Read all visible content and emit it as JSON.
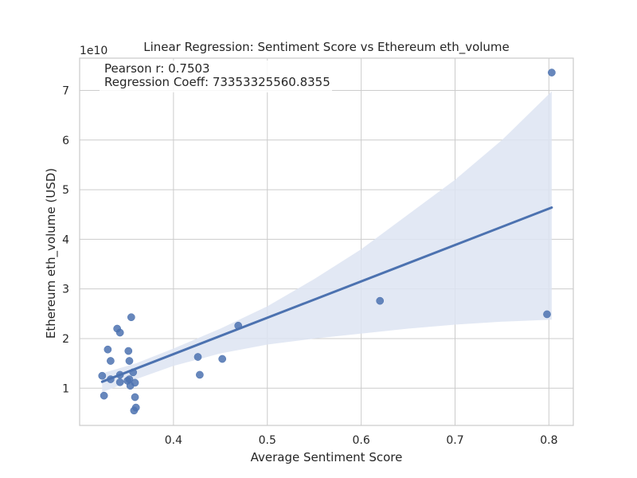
{
  "chart_data": {
    "type": "scatter",
    "title": "Linear Regression: Sentiment Score vs Ethereum eth_volume",
    "xlabel": "Average Sentiment Score",
    "ylabel": "Ethereum eth_volume (USD)",
    "y_scale_label": "1e10",
    "xlim": [
      0.3,
      0.826
    ],
    "ylim": [
      0.25,
      7.65
    ],
    "x_ticks": [
      0.4,
      0.5,
      0.6,
      0.7,
      0.8
    ],
    "y_ticks": [
      1,
      2,
      3,
      4,
      5,
      6,
      7
    ],
    "x_tick_labels": [
      "0.4",
      "0.5",
      "0.6",
      "0.7",
      "0.8"
    ],
    "y_tick_labels": [
      "1",
      "2",
      "3",
      "4",
      "5",
      "6",
      "7"
    ],
    "grid": true,
    "annotations": [
      "Pearson r: 0.7503",
      "Regression Coeff: 73353325560.8355"
    ],
    "colors": {
      "points": "#4c72b0",
      "line": "#4c72b0",
      "band": "#dde4f2",
      "grid": "#cccccc",
      "frame": "#cccccc"
    },
    "points": [
      {
        "x": 0.324,
        "y": 1.25
      },
      {
        "x": 0.326,
        "y": 0.85
      },
      {
        "x": 0.33,
        "y": 1.78
      },
      {
        "x": 0.333,
        "y": 1.55
      },
      {
        "x": 0.333,
        "y": 1.18
      },
      {
        "x": 0.34,
        "y": 2.2
      },
      {
        "x": 0.343,
        "y": 2.12
      },
      {
        "x": 0.343,
        "y": 1.27
      },
      {
        "x": 0.343,
        "y": 1.12
      },
      {
        "x": 0.351,
        "y": 1.15
      },
      {
        "x": 0.352,
        "y": 1.75
      },
      {
        "x": 0.353,
        "y": 1.55
      },
      {
        "x": 0.353,
        "y": 1.18
      },
      {
        "x": 0.354,
        "y": 1.05
      },
      {
        "x": 0.355,
        "y": 2.43
      },
      {
        "x": 0.357,
        "y": 1.32
      },
      {
        "x": 0.358,
        "y": 0.55
      },
      {
        "x": 0.359,
        "y": 0.82
      },
      {
        "x": 0.359,
        "y": 1.11
      },
      {
        "x": 0.36,
        "y": 0.61
      },
      {
        "x": 0.426,
        "y": 1.63
      },
      {
        "x": 0.428,
        "y": 1.27
      },
      {
        "x": 0.452,
        "y": 1.59
      },
      {
        "x": 0.469,
        "y": 2.26
      },
      {
        "x": 0.62,
        "y": 2.76
      },
      {
        "x": 0.798,
        "y": 2.49
      },
      {
        "x": 0.803,
        "y": 7.36
      }
    ],
    "regression": {
      "x": [
        0.324,
        0.803
      ],
      "y": [
        1.13,
        4.64
      ]
    },
    "confidence_band": {
      "x": [
        0.324,
        0.36,
        0.4,
        0.45,
        0.5,
        0.55,
        0.6,
        0.65,
        0.7,
        0.75,
        0.803
      ],
      "upper": [
        1.3,
        1.5,
        1.8,
        2.2,
        2.65,
        3.2,
        3.8,
        4.5,
        5.2,
        6.0,
        6.98
      ],
      "lower": [
        0.92,
        1.18,
        1.45,
        1.7,
        1.88,
        2.0,
        2.1,
        2.2,
        2.28,
        2.34,
        2.38
      ]
    }
  }
}
